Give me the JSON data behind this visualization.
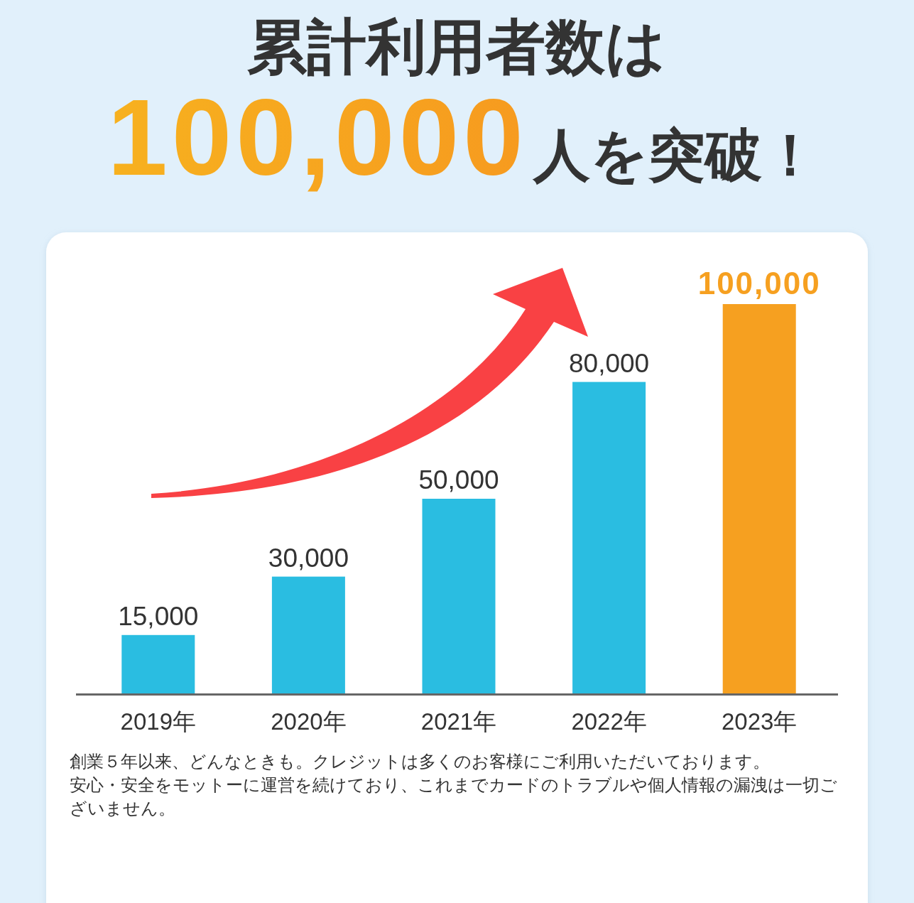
{
  "chart_data": {
    "type": "bar",
    "title": "累計利用者数は",
    "subtitle": "100,000人を突破！",
    "categories": [
      "2019年",
      "2020年",
      "2021年",
      "2022年",
      "2023年"
    ],
    "values": [
      15000,
      30000,
      50000,
      80000,
      100000
    ],
    "value_labels": [
      "15,000",
      "30,000",
      "50,000",
      "80,000",
      "100,000"
    ],
    "colors": [
      "#2abde1",
      "#2abde1",
      "#2abde1",
      "#2abde1",
      "#f6a020"
    ],
    "annotations": [
      "創業５年以来、どんなときも。クレジットは多くのお客様にご利用いただいております。",
      "安心・安全をモットーに運営を続けており、これまでカードのトラブルや個人情報の漏洩は一切ございません。"
    ]
  }
}
